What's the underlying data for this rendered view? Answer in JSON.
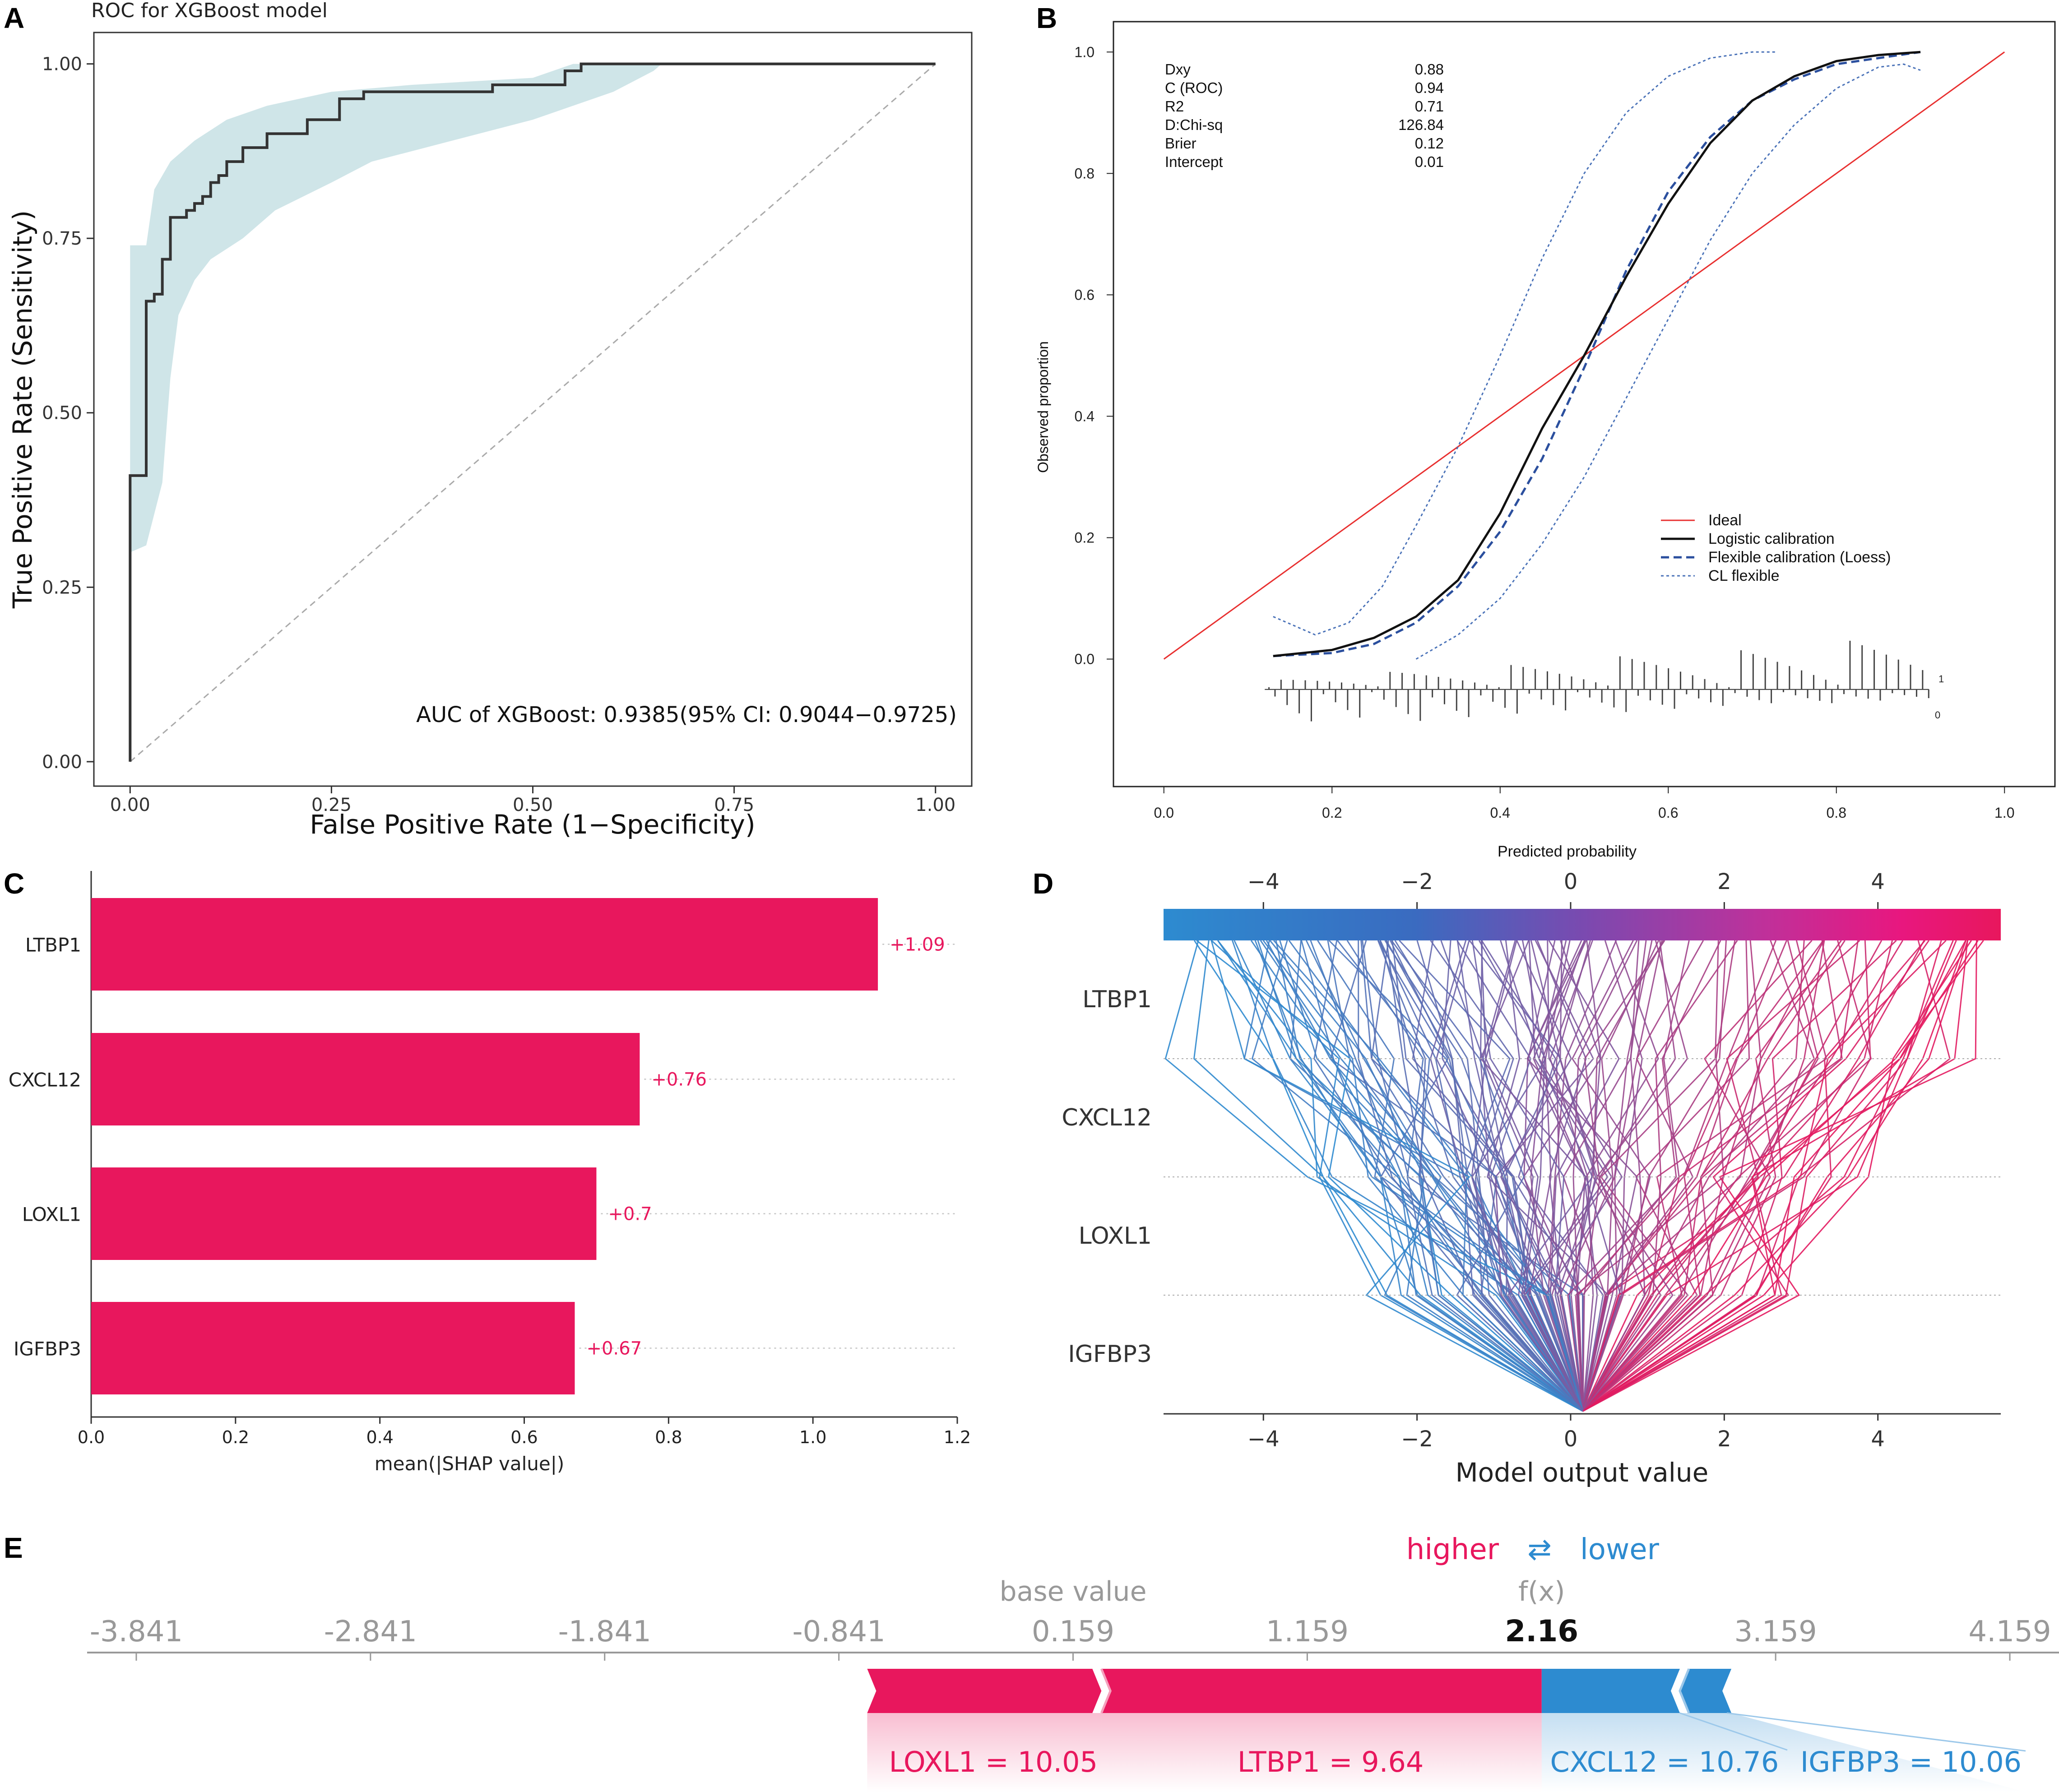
{
  "panels": [
    "A",
    "B",
    "C",
    "D",
    "E"
  ],
  "colors": {
    "pink": "#e8175d",
    "blue": "#2d8bd0",
    "roc_line": "#333333",
    "roc_band": "#cfe5e8",
    "calib_red": "#e83030",
    "calib_blue": "#2b4f9e",
    "calib_dotted": "#4a72b8"
  },
  "chart_data": [
    {
      "panel": "A",
      "type": "line",
      "title": "ROC for XGBoost model",
      "xlabel": "False Positive Rate (1−Specificity)",
      "ylabel": "True Positive Rate (Sensitivity)",
      "xlim": [
        -0.045,
        1.045
      ],
      "ylim": [
        -0.035,
        1.045
      ],
      "xticks": [
        0.0,
        0.25,
        0.5,
        0.75,
        1.0
      ],
      "xtick_labels": [
        "0.00",
        "0.25",
        "0.50",
        "0.75",
        "1.00"
      ],
      "yticks": [
        0.0,
        0.25,
        0.5,
        0.75,
        1.0
      ],
      "ytick_labels": [
        "0.00",
        "0.25",
        "0.50",
        "0.75",
        "1.00"
      ],
      "annotation": "AUC of XGBoost: 0.9385(95% CI: 0.9044−0.9725)",
      "roc_curve": [
        [
          0,
          0
        ],
        [
          0,
          0.41
        ],
        [
          0.02,
          0.41
        ],
        [
          0.02,
          0.66
        ],
        [
          0.03,
          0.66
        ],
        [
          0.03,
          0.67
        ],
        [
          0.04,
          0.67
        ],
        [
          0.04,
          0.72
        ],
        [
          0.05,
          0.72
        ],
        [
          0.05,
          0.78
        ],
        [
          0.07,
          0.78
        ],
        [
          0.07,
          0.79
        ],
        [
          0.08,
          0.79
        ],
        [
          0.08,
          0.8
        ],
        [
          0.09,
          0.8
        ],
        [
          0.09,
          0.81
        ],
        [
          0.1,
          0.81
        ],
        [
          0.1,
          0.83
        ],
        [
          0.11,
          0.83
        ],
        [
          0.11,
          0.84
        ],
        [
          0.12,
          0.84
        ],
        [
          0.12,
          0.86
        ],
        [
          0.14,
          0.86
        ],
        [
          0.14,
          0.88
        ],
        [
          0.17,
          0.88
        ],
        [
          0.17,
          0.9
        ],
        [
          0.22,
          0.9
        ],
        [
          0.22,
          0.92
        ],
        [
          0.26,
          0.92
        ],
        [
          0.26,
          0.95
        ],
        [
          0.29,
          0.95
        ],
        [
          0.29,
          0.96
        ],
        [
          0.45,
          0.96
        ],
        [
          0.45,
          0.97
        ],
        [
          0.54,
          0.97
        ],
        [
          0.54,
          0.99
        ],
        [
          0.56,
          0.99
        ],
        [
          0.56,
          1.0
        ],
        [
          1.0,
          1.0
        ]
      ],
      "ci_upper": [
        [
          0,
          0.74
        ],
        [
          0.02,
          0.74
        ],
        [
          0.03,
          0.82
        ],
        [
          0.05,
          0.86
        ],
        [
          0.08,
          0.89
        ],
        [
          0.12,
          0.92
        ],
        [
          0.17,
          0.94
        ],
        [
          0.25,
          0.96
        ],
        [
          0.35,
          0.97
        ],
        [
          0.5,
          0.98
        ],
        [
          0.55,
          1.0
        ],
        [
          1.0,
          1.0
        ]
      ],
      "ci_lower": [
        [
          0,
          0.3
        ],
        [
          0.02,
          0.31
        ],
        [
          0.04,
          0.4
        ],
        [
          0.05,
          0.55
        ],
        [
          0.06,
          0.64
        ],
        [
          0.08,
          0.69
        ],
        [
          0.1,
          0.72
        ],
        [
          0.14,
          0.75
        ],
        [
          0.18,
          0.79
        ],
        [
          0.25,
          0.83
        ],
        [
          0.3,
          0.86
        ],
        [
          0.4,
          0.89
        ],
        [
          0.5,
          0.92
        ],
        [
          0.6,
          0.96
        ],
        [
          0.65,
          0.99
        ],
        [
          0.66,
          1.0
        ],
        [
          1.0,
          1.0
        ]
      ],
      "reference_line": [
        [
          0,
          0
        ],
        [
          1,
          1
        ]
      ]
    },
    {
      "panel": "B",
      "type": "line",
      "xlabel": "Predicted probability",
      "ylabel": "Observed proportion",
      "xlim": [
        -0.06,
        1.06
      ],
      "ylim": [
        -0.21,
        1.05
      ],
      "xticks": [
        0.0,
        0.2,
        0.4,
        0.6,
        0.8,
        1.0
      ],
      "xtick_labels": [
        "0.0",
        "0.2",
        "0.4",
        "0.6",
        "0.8",
        "1.0"
      ],
      "yticks": [
        0.0,
        0.2,
        0.4,
        0.6,
        0.8,
        1.0
      ],
      "ytick_labels": [
        "0.0",
        "0.2",
        "0.4",
        "0.6",
        "0.8",
        "1.0"
      ],
      "stats": [
        {
          "name": "Dxy",
          "value": "0.88"
        },
        {
          "name": "C (ROC)",
          "value": "0.94"
        },
        {
          "name": "R2",
          "value": "0.71"
        },
        {
          "name": "D:Chi-sq",
          "value": "126.84"
        },
        {
          "name": "Brier",
          "value": "0.12"
        },
        {
          "name": "Intercept",
          "value": "0.01"
        }
      ],
      "legend": [
        "Ideal",
        "Logistic calibration",
        "Flexible calibration (Loess)",
        "CL flexible"
      ],
      "rug_labels": [
        "1",
        "0"
      ],
      "logistic": [
        [
          0.13,
          0.005
        ],
        [
          0.2,
          0.015
        ],
        [
          0.25,
          0.035
        ],
        [
          0.3,
          0.07
        ],
        [
          0.35,
          0.13
        ],
        [
          0.4,
          0.24
        ],
        [
          0.45,
          0.38
        ],
        [
          0.5,
          0.5
        ],
        [
          0.55,
          0.63
        ],
        [
          0.6,
          0.75
        ],
        [
          0.65,
          0.85
        ],
        [
          0.7,
          0.92
        ],
        [
          0.75,
          0.96
        ],
        [
          0.8,
          0.985
        ],
        [
          0.85,
          0.995
        ],
        [
          0.9,
          1.0
        ]
      ],
      "loess": [
        [
          0.13,
          0.005
        ],
        [
          0.2,
          0.01
        ],
        [
          0.25,
          0.025
        ],
        [
          0.3,
          0.06
        ],
        [
          0.35,
          0.12
        ],
        [
          0.4,
          0.21
        ],
        [
          0.45,
          0.33
        ],
        [
          0.5,
          0.48
        ],
        [
          0.55,
          0.64
        ],
        [
          0.6,
          0.77
        ],
        [
          0.65,
          0.86
        ],
        [
          0.7,
          0.92
        ],
        [
          0.75,
          0.955
        ],
        [
          0.8,
          0.98
        ],
        [
          0.85,
          0.99
        ],
        [
          0.9,
          1.0
        ]
      ],
      "cl_upper": [
        [
          0.13,
          0.07
        ],
        [
          0.18,
          0.04
        ],
        [
          0.22,
          0.06
        ],
        [
          0.26,
          0.12
        ],
        [
          0.3,
          0.22
        ],
        [
          0.35,
          0.35
        ],
        [
          0.4,
          0.5
        ],
        [
          0.45,
          0.66
        ],
        [
          0.5,
          0.8
        ],
        [
          0.55,
          0.9
        ],
        [
          0.6,
          0.96
        ],
        [
          0.65,
          0.99
        ],
        [
          0.7,
          1.0
        ],
        [
          0.73,
          1.0
        ]
      ],
      "cl_lower": [
        [
          0.3,
          0.0
        ],
        [
          0.35,
          0.04
        ],
        [
          0.4,
          0.1
        ],
        [
          0.45,
          0.19
        ],
        [
          0.5,
          0.3
        ],
        [
          0.55,
          0.43
        ],
        [
          0.6,
          0.56
        ],
        [
          0.65,
          0.69
        ],
        [
          0.7,
          0.8
        ],
        [
          0.75,
          0.88
        ],
        [
          0.8,
          0.94
        ],
        [
          0.85,
          0.975
        ],
        [
          0.88,
          0.98
        ],
        [
          0.9,
          0.97
        ]
      ],
      "ideal": [
        [
          0,
          0
        ],
        [
          1,
          1
        ]
      ]
    },
    {
      "panel": "C",
      "type": "bar",
      "categories": [
        "LTBP1",
        "CXCL12",
        "LOXL1",
        "IGFBP3"
      ],
      "values": [
        1.09,
        0.76,
        0.7,
        0.67
      ],
      "value_labels": [
        "+1.09",
        "+0.76",
        "+0.7",
        "+0.67"
      ],
      "xlabel": "mean(|SHAP value|)",
      "xlim": [
        0,
        1.2
      ],
      "xticks": [
        0.0,
        0.2,
        0.4,
        0.6,
        0.8,
        1.0,
        1.2
      ],
      "xtick_labels": [
        "0.0",
        "0.2",
        "0.4",
        "0.6",
        "0.8",
        "1.0",
        "1.2"
      ]
    },
    {
      "panel": "D",
      "type": "line",
      "xlabel": "Model output value",
      "features": [
        "LTBP1",
        "CXCL12",
        "LOXL1",
        "IGFBP3"
      ],
      "xlim": [
        -5.3,
        5.6
      ],
      "xticks": [
        -4,
        -2,
        0,
        2,
        4
      ],
      "xtick_labels": [
        "−4",
        "−2",
        "0",
        "2",
        "4"
      ],
      "base_value": 0.159
    },
    {
      "panel": "E",
      "type": "bar",
      "legend": {
        "higher": "higher",
        "arrows": "⇄",
        "lower": "lower"
      },
      "base_value_label": "base value",
      "fx_label": "f(x)",
      "fx_value": "2.16",
      "base_value": 0.159,
      "output_value": 2.16,
      "ticks": [
        -3.841,
        -2.841,
        -1.841,
        -0.841,
        0.159,
        1.159,
        3.159,
        4.159
      ],
      "tick_labels": [
        "-3.841",
        "-2.841",
        "-1.841",
        "-0.841",
        "0.159",
        "1.159",
        "3.159",
        "4.159"
      ],
      "xlim": [
        -4.051,
        4.369
      ],
      "positive_contribs": [
        {
          "feature": "LOXL1 = 10.05",
          "from": -0.72,
          "to": 0.28
        },
        {
          "feature": "LTBP1 = 9.64",
          "from": 0.28,
          "to": 2.16
        }
      ],
      "negative_contribs": [
        {
          "feature": "CXCL12 = 10.76",
          "from": 2.16,
          "to": 2.75
        },
        {
          "feature": "IGFBP3 = 10.06",
          "from": 2.75,
          "to": 2.97
        }
      ]
    }
  ]
}
